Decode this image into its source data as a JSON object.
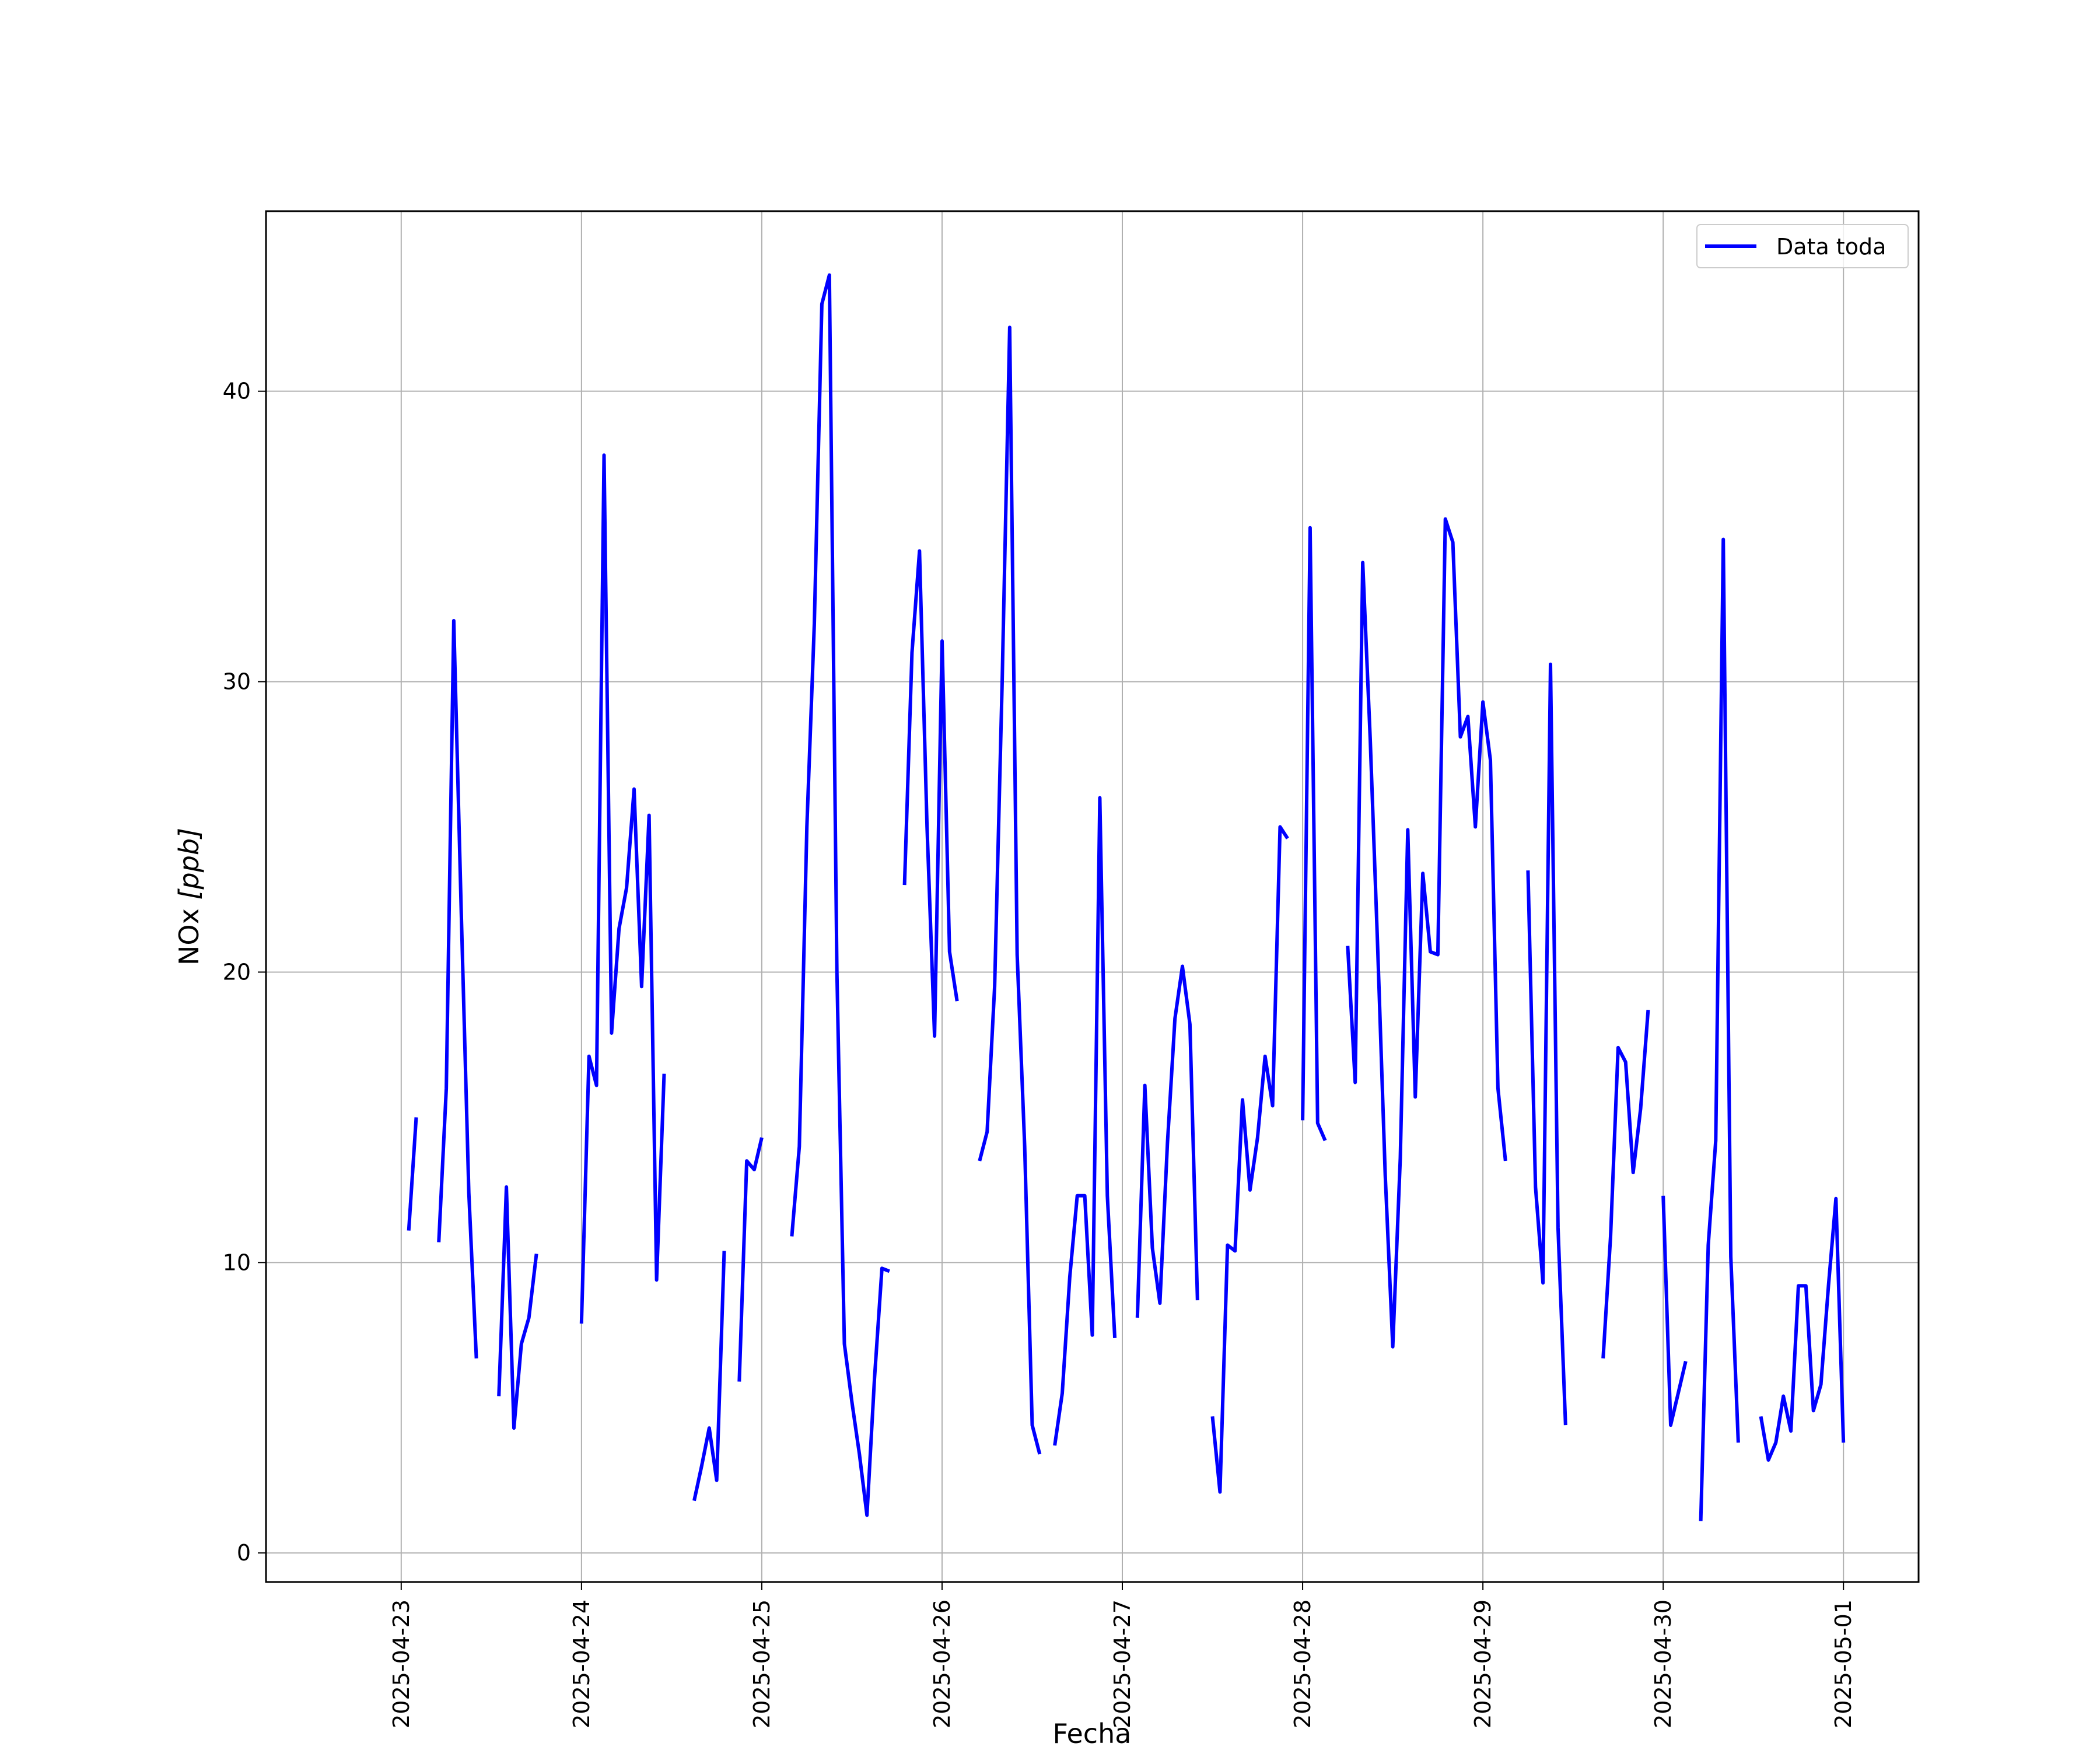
{
  "chart_data": {
    "type": "line",
    "xlabel": "Fecha",
    "ylabel_main": "NOx ",
    "ylabel_unit": "[ppb]",
    "x_ticks": [
      "2025-04-23",
      "2025-04-24",
      "2025-04-25",
      "2025-04-26",
      "2025-04-27",
      "2025-04-28",
      "2025-04-29",
      "2025-04-30",
      "2025-05-01"
    ],
    "y_ticks": [
      0,
      10,
      20,
      30,
      40
    ],
    "xlim": [
      "2025-04-22T06:00",
      "2025-05-01T10:00"
    ],
    "ylim": [
      -1,
      46.2
    ],
    "grid": true,
    "legend_position": "top-right",
    "line_color": "#0000ff",
    "series": [
      {
        "name": "Data toda",
        "points": [
          [
            "2025-04-23T01:00",
            11.1
          ],
          [
            "2025-04-23T02:00",
            15.0
          ],
          [
            "2025-04-23T03:00",
            null
          ],
          [
            "2025-04-23T05:00",
            10.7
          ],
          [
            "2025-04-23T06:00",
            16.0
          ],
          [
            "2025-04-23T07:00",
            32.1
          ],
          [
            "2025-04-23T08:00",
            22.0
          ],
          [
            "2025-04-23T09:00",
            12.4
          ],
          [
            "2025-04-23T10:00",
            6.7
          ],
          [
            "2025-04-23T11:00",
            null
          ],
          [
            "2025-04-23T13:00",
            5.4
          ],
          [
            "2025-04-23T14:00",
            12.6
          ],
          [
            "2025-04-23T15:00",
            4.3
          ],
          [
            "2025-04-23T16:00",
            7.2
          ],
          [
            "2025-04-23T17:00",
            8.1
          ],
          [
            "2025-04-23T18:00",
            10.3
          ],
          [
            "2025-04-23T19:00",
            null
          ],
          [
            "2025-04-24T00:00",
            7.9
          ],
          [
            "2025-04-24T01:00",
            17.1
          ],
          [
            "2025-04-24T02:00",
            16.1
          ],
          [
            "2025-04-24T03:00",
            37.8
          ],
          [
            "2025-04-24T04:00",
            17.9
          ],
          [
            "2025-04-24T05:00",
            21.5
          ],
          [
            "2025-04-24T06:00",
            22.9
          ],
          [
            "2025-04-24T07:00",
            26.3
          ],
          [
            "2025-04-24T08:00",
            19.5
          ],
          [
            "2025-04-24T09:00",
            25.4
          ],
          [
            "2025-04-24T10:00",
            9.4
          ],
          [
            "2025-04-24T11:00",
            16.5
          ],
          [
            "2025-04-24T12:00",
            null
          ],
          [
            "2025-04-24T15:00",
            1.8
          ],
          [
            "2025-04-24T16:00",
            3.0
          ],
          [
            "2025-04-24T17:00",
            4.3
          ],
          [
            "2025-04-24T18:00",
            2.5
          ],
          [
            "2025-04-24T19:00",
            10.4
          ],
          [
            "2025-04-24T20:00",
            null
          ],
          [
            "2025-04-24T21:00",
            5.9
          ],
          [
            "2025-04-24T22:00",
            13.5
          ],
          [
            "2025-04-24T23:00",
            13.2
          ],
          [
            "2025-04-25T00:00",
            14.3
          ],
          [
            "2025-04-25T01:00",
            null
          ],
          [
            "2025-04-25T04:00",
            10.9
          ],
          [
            "2025-04-25T05:00",
            14.0
          ],
          [
            "2025-04-25T06:00",
            25.0
          ],
          [
            "2025-04-25T07:00",
            32.0
          ],
          [
            "2025-04-25T08:00",
            43.0
          ],
          [
            "2025-04-25T09:00",
            44.0
          ],
          [
            "2025-04-25T10:00",
            20.0
          ],
          [
            "2025-04-25T11:00",
            7.2
          ],
          [
            "2025-04-25T12:00",
            5.2
          ],
          [
            "2025-04-25T13:00",
            3.4
          ],
          [
            "2025-04-25T14:00",
            1.3
          ],
          [
            "2025-04-25T15:00",
            6.0
          ],
          [
            "2025-04-25T16:00",
            9.8
          ],
          [
            "2025-04-25T17:00",
            9.7
          ],
          [
            "2025-04-25T18:00",
            null
          ],
          [
            "2025-04-25T19:00",
            23.0
          ],
          [
            "2025-04-25T20:00",
            31.0
          ],
          [
            "2025-04-25T21:00",
            34.5
          ],
          [
            "2025-04-25T22:00",
            25.0
          ],
          [
            "2025-04-25T23:00",
            17.8
          ],
          [
            "2025-04-26T00:00",
            31.4
          ],
          [
            "2025-04-26T01:00",
            20.7
          ],
          [
            "2025-04-26T02:00",
            19.0
          ],
          [
            "2025-04-26T03:00",
            null
          ],
          [
            "2025-04-26T05:00",
            13.5
          ],
          [
            "2025-04-26T06:00",
            14.5
          ],
          [
            "2025-04-26T07:00",
            19.5
          ],
          [
            "2025-04-26T08:00",
            30.0
          ],
          [
            "2025-04-26T09:00",
            42.2
          ],
          [
            "2025-04-26T10:00",
            20.6
          ],
          [
            "2025-04-26T11:00",
            14.0
          ],
          [
            "2025-04-26T12:00",
            4.4
          ],
          [
            "2025-04-26T13:00",
            3.4
          ],
          [
            "2025-04-26T14:00",
            null
          ],
          [
            "2025-04-26T15:00",
            3.7
          ],
          [
            "2025-04-26T16:00",
            5.5
          ],
          [
            "2025-04-26T17:00",
            9.5
          ],
          [
            "2025-04-26T18:00",
            12.3
          ],
          [
            "2025-04-26T19:00",
            12.3
          ],
          [
            "2025-04-26T20:00",
            7.5
          ],
          [
            "2025-04-26T21:00",
            26.0
          ],
          [
            "2025-04-26T22:00",
            12.3
          ],
          [
            "2025-04-26T23:00",
            7.4
          ],
          [
            "2025-04-27T00:00",
            null
          ],
          [
            "2025-04-27T02:00",
            8.1
          ],
          [
            "2025-04-27T03:00",
            16.1
          ],
          [
            "2025-04-27T04:00",
            10.5
          ],
          [
            "2025-04-27T05:00",
            8.6
          ],
          [
            "2025-04-27T06:00",
            14.1
          ],
          [
            "2025-04-27T07:00",
            18.4
          ],
          [
            "2025-04-27T08:00",
            20.2
          ],
          [
            "2025-04-27T09:00",
            18.2
          ],
          [
            "2025-04-27T10:00",
            8.7
          ],
          [
            "2025-04-27T11:00",
            null
          ],
          [
            "2025-04-27T12:00",
            4.7
          ],
          [
            "2025-04-27T13:00",
            2.1
          ],
          [
            "2025-04-27T14:00",
            10.6
          ],
          [
            "2025-04-27T15:00",
            10.4
          ],
          [
            "2025-04-27T16:00",
            15.6
          ],
          [
            "2025-04-27T17:00",
            12.5
          ],
          [
            "2025-04-27T18:00",
            14.3
          ],
          [
            "2025-04-27T19:00",
            17.1
          ],
          [
            "2025-04-27T20:00",
            15.4
          ],
          [
            "2025-04-27T21:00",
            25.0
          ],
          [
            "2025-04-27T22:00",
            24.6
          ],
          [
            "2025-04-27T23:00",
            null
          ],
          [
            "2025-04-28T00:00",
            14.9
          ],
          [
            "2025-04-28T01:00",
            35.3
          ],
          [
            "2025-04-28T02:00",
            14.8
          ],
          [
            "2025-04-28T03:00",
            14.2
          ],
          [
            "2025-04-28T04:00",
            null
          ],
          [
            "2025-04-28T06:00",
            20.9
          ],
          [
            "2025-04-28T07:00",
            16.2
          ],
          [
            "2025-04-28T08:00",
            34.1
          ],
          [
            "2025-04-28T09:00",
            28.0
          ],
          [
            "2025-04-28T10:00",
            20.8
          ],
          [
            "2025-04-28T11:00",
            13.0
          ],
          [
            "2025-04-28T12:00",
            7.1
          ],
          [
            "2025-04-28T13:00",
            13.6
          ],
          [
            "2025-04-28T14:00",
            24.9
          ],
          [
            "2025-04-28T15:00",
            15.7
          ],
          [
            "2025-04-28T16:00",
            23.4
          ],
          [
            "2025-04-28T17:00",
            20.7
          ],
          [
            "2025-04-28T18:00",
            20.6
          ],
          [
            "2025-04-28T19:00",
            35.6
          ],
          [
            "2025-04-28T20:00",
            34.8
          ],
          [
            "2025-04-28T21:00",
            28.1
          ],
          [
            "2025-04-28T22:00",
            28.8
          ],
          [
            "2025-04-28T23:00",
            25.0
          ],
          [
            "2025-04-29T00:00",
            29.3
          ],
          [
            "2025-04-29T01:00",
            27.3
          ],
          [
            "2025-04-29T02:00",
            16.0
          ],
          [
            "2025-04-29T03:00",
            13.5
          ],
          [
            "2025-04-29T04:00",
            null
          ],
          [
            "2025-04-29T06:00",
            23.5
          ],
          [
            "2025-04-29T07:00",
            12.6
          ],
          [
            "2025-04-29T08:00",
            9.3
          ],
          [
            "2025-04-29T09:00",
            30.6
          ],
          [
            "2025-04-29T10:00",
            11.2
          ],
          [
            "2025-04-29T11:00",
            4.4
          ],
          [
            "2025-04-29T12:00",
            null
          ],
          [
            "2025-04-29T16:00",
            6.7
          ],
          [
            "2025-04-29T17:00",
            10.9
          ],
          [
            "2025-04-29T18:00",
            17.4
          ],
          [
            "2025-04-29T19:00",
            16.9
          ],
          [
            "2025-04-29T20:00",
            13.1
          ],
          [
            "2025-04-29T21:00",
            15.3
          ],
          [
            "2025-04-29T22:00",
            18.7
          ],
          [
            "2025-04-29T23:00",
            null
          ],
          [
            "2025-04-30T00:00",
            12.3
          ],
          [
            "2025-04-30T01:00",
            4.4
          ],
          [
            "2025-04-30T02:00",
            5.5
          ],
          [
            "2025-04-30T03:00",
            6.6
          ],
          [
            "2025-04-30T04:00",
            null
          ],
          [
            "2025-04-30T05:00",
            1.1
          ],
          [
            "2025-04-30T06:00",
            10.6
          ],
          [
            "2025-04-30T07:00",
            14.2
          ],
          [
            "2025-04-30T08:00",
            34.9
          ],
          [
            "2025-04-30T09:00",
            10.2
          ],
          [
            "2025-04-30T10:00",
            3.8
          ],
          [
            "2025-04-30T11:00",
            null
          ],
          [
            "2025-04-30T13:00",
            4.7
          ],
          [
            "2025-04-30T14:00",
            3.2
          ],
          [
            "2025-04-30T15:00",
            3.8
          ],
          [
            "2025-04-30T16:00",
            5.4
          ],
          [
            "2025-04-30T17:00",
            4.2
          ],
          [
            "2025-04-30T18:00",
            9.2
          ],
          [
            "2025-04-30T19:00",
            9.2
          ],
          [
            "2025-04-30T20:00",
            4.9
          ],
          [
            "2025-04-30T21:00",
            5.8
          ],
          [
            "2025-04-30T22:00",
            9.2
          ],
          [
            "2025-04-30T23:00",
            12.2
          ],
          [
            "2025-05-01T00:00",
            3.8
          ]
        ]
      }
    ]
  }
}
